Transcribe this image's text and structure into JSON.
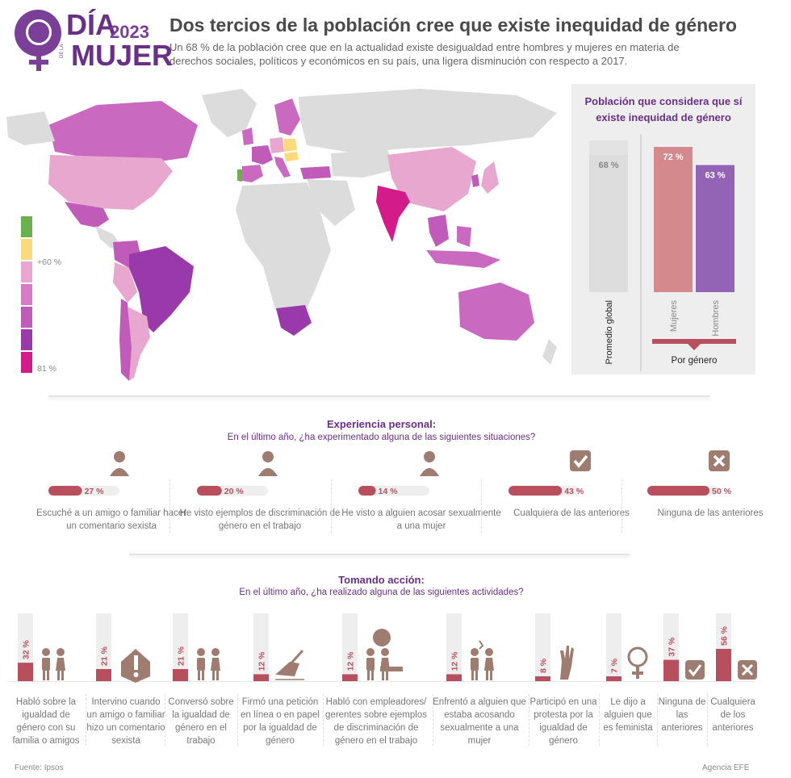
{
  "header": {
    "logo_dia": "DÍA",
    "logo_year": "2023",
    "logo_de_la": "DE LA",
    "logo_mujer": "MUJER",
    "title": "Dos tercios de la población cree que existe inequidad de género",
    "subtitle": "Un 68 % de la población cree que en la actualidad existe desigualdad entre hombres y mujeres en materia de derechos sociales, políticos y económicos en su país, una ligera disminución con respecto a 2017."
  },
  "map": {
    "legend_top_label": "+60 %",
    "legend_bottom_label": "81 %",
    "legend_colors": [
      "#6ab04c",
      "#fcd97a",
      "#e8a7cf",
      "#d87bc7",
      "#c05bb9",
      "#9a3aaa",
      "#d41b8a"
    ]
  },
  "colors": {
    "mujeres": "#d4898c",
    "hombres": "#9363b5",
    "global": "#dddddd",
    "bar_dark": "#b84f5e",
    "bar_light": "#eeeeee",
    "icon_fill": "#9e7d70",
    "accent": "#6a2f86"
  },
  "panel": {
    "title": "Población que considera que sí existe inequidad de género",
    "group_label": "Por género"
  },
  "chart_data": [
    {
      "type": "bar",
      "title": "Población que considera que sí existe inequidad de género",
      "categories": [
        "Promedio global",
        "Mujeres",
        "Hombres"
      ],
      "values": [
        68,
        72,
        63
      ],
      "value_labels": [
        "68 %",
        "72 %",
        "63 %"
      ],
      "ylim": [
        0,
        100
      ]
    },
    {
      "type": "bar",
      "title": "Experiencia personal:",
      "subtitle": "En el último año, ¿ha experimentado alguna de las siguientes situaciones?",
      "categories": [
        "Escuché a un amigo o familiar hacer un comentario sexista",
        "He visto ejemplos de discriminación de género en el trabajo",
        "He visto a alguien acosar sexualmente a una mujer",
        "Cualquiera de las anteriores",
        "Ninguna de las anteriores"
      ],
      "values": [
        27,
        20,
        14,
        43,
        50
      ],
      "value_labels": [
        "27 %",
        "20 %",
        "14 %",
        "43 %",
        "50 %"
      ]
    },
    {
      "type": "bar",
      "title": "Tomando acción:",
      "subtitle": "En el último año, ¿ha realizado alguna de las siguientes actividades?",
      "categories": [
        "Habló sobre la igualdad de género con su familia o amigos",
        "Intervino cuando un amigo o familiar hizo un comentario sexista",
        "Conversó sobre la igualdad de género en el trabajo",
        "Firmó una petición en línea o en papel por la igualdad de género",
        "Habló con empleadores/ gerentes sobre ejemplos de discriminación de género en el trabajo",
        "Enfrentó a alguien que estaba acosando sexualmente a una mujer",
        "Participó en una protesta por la igualdad de género",
        "Le dijo a alguien que es feminista",
        "Ninguna de las anteriores",
        "Cualquiera de los anteriores"
      ],
      "values": [
        32,
        21,
        21,
        12,
        12,
        12,
        8,
        7,
        37,
        56
      ],
      "value_labels": [
        "32 %",
        "21 %",
        "21 %",
        "12 %",
        "12 %",
        "12 %",
        "8 %",
        "7 %",
        "37 %",
        "56 %"
      ]
    }
  ],
  "footer": {
    "source": "Fuente: Ipsos",
    "agency": "Agencia EFE"
  }
}
